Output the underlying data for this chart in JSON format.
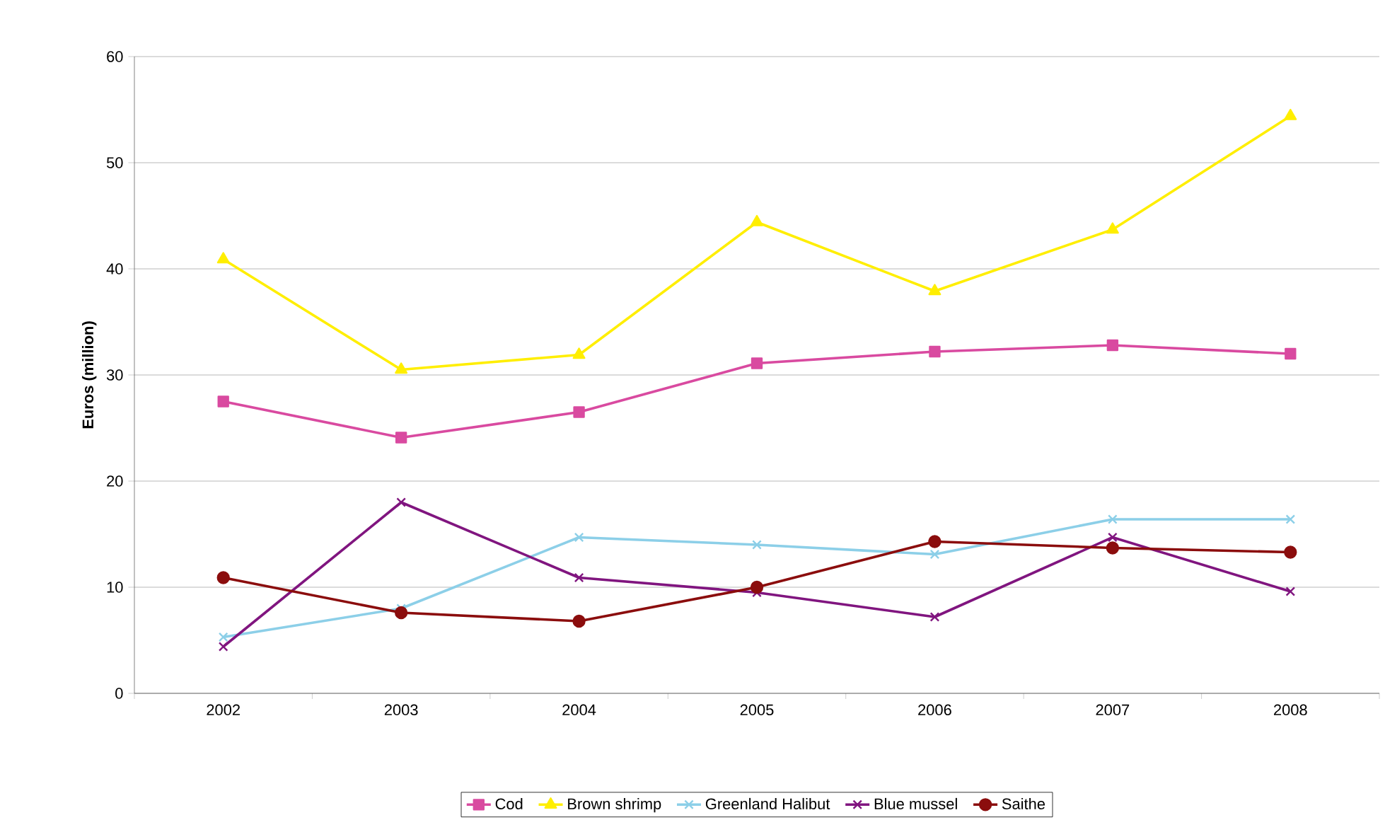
{
  "chart_data": {
    "type": "line",
    "ylabel": "Euros (million)",
    "categories": [
      "2002",
      "2003",
      "2004",
      "2005",
      "2006",
      "2007",
      "2008"
    ],
    "ylim": [
      0,
      60
    ],
    "yticks": [
      0,
      10,
      20,
      30,
      40,
      50,
      60
    ],
    "grid": "y",
    "legend": "bottom",
    "series": [
      {
        "name": "Cod",
        "color": "#d94aa0",
        "marker": "square",
        "values": [
          27.5,
          24.1,
          26.5,
          31.1,
          32.2,
          32.8,
          32.0
        ]
      },
      {
        "name": "Brown shrimp",
        "color": "#ffee00",
        "marker": "triangle",
        "values": [
          40.9,
          30.5,
          31.9,
          44.4,
          37.9,
          43.7,
          54.4
        ]
      },
      {
        "name": "Greenland Halibut",
        "color": "#8ccfe8",
        "marker": "cross",
        "values": [
          5.3,
          8.0,
          14.7,
          14.0,
          13.1,
          16.4,
          16.4
        ]
      },
      {
        "name": "Blue mussel",
        "color": "#80157f",
        "marker": "cross",
        "values": [
          4.4,
          18.0,
          10.9,
          9.5,
          7.2,
          14.7,
          9.6
        ]
      },
      {
        "name": "Saithe",
        "color": "#8b0d0d",
        "marker": "circle",
        "values": [
          10.9,
          7.6,
          6.8,
          10.0,
          14.3,
          13.7,
          13.3
        ]
      }
    ]
  }
}
